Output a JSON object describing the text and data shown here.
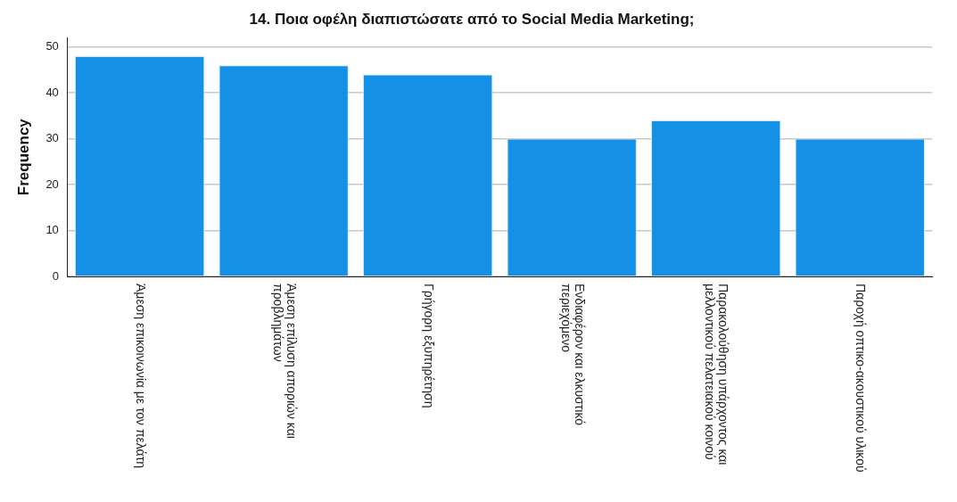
{
  "chart_data": {
    "type": "bar",
    "title": "14. Ποια οφέλη διαπιστώσατε από το Social Media Marketing;",
    "ylabel": "Frequency",
    "categories": [
      "Άμεση επικοινωνία με τον πελάτη",
      "Άμεση επίλυση αποριών και προβλημάτων",
      "Γρήγορη εξυπηρέτηση",
      "Ενδιαφέρον και ελκυστικό περιεχόμενο",
      "Παρακολούθηση υπάρχοντος και μελλοντικού πελατειακού κοινού",
      "Παροχή οπτικο-ακουστικού υλικού"
    ],
    "values": [
      48,
      46,
      44,
      30,
      34,
      30
    ],
    "color": "#1490e6",
    "ylim": [
      0,
      52
    ],
    "yticks": [
      0,
      10,
      20,
      30,
      40,
      50
    ],
    "grid": "y",
    "legend": false
  }
}
